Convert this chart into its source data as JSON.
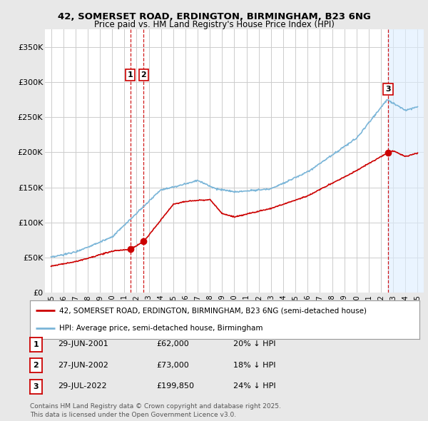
{
  "title_line1": "42, SOMERSET ROAD, ERDINGTON, BIRMINGHAM, B23 6NG",
  "title_line2": "Price paid vs. HM Land Registry's House Price Index (HPI)",
  "background_color": "#e8e8e8",
  "plot_bg_color": "#ffffff",
  "grid_color": "#cccccc",
  "hpi_color": "#7ab5d8",
  "price_color": "#cc0000",
  "dashed_color": "#cc0000",
  "shade_color": "#ddeeff",
  "purchases": [
    {
      "date_x": 2001.49,
      "price": 62000,
      "label": "1"
    },
    {
      "date_x": 2002.58,
      "price": 73000,
      "label": "2"
    },
    {
      "date_x": 2022.58,
      "price": 199850,
      "label": "3"
    }
  ],
  "legend_line1": "42, SOMERSET ROAD, ERDINGTON, BIRMINGHAM, B23 6NG (semi-detached house)",
  "legend_line2": "HPI: Average price, semi-detached house, Birmingham",
  "table_entries": [
    {
      "num": "1",
      "date": "29-JUN-2001",
      "price": "£62,000",
      "note": "20% ↓ HPI"
    },
    {
      "num": "2",
      "date": "27-JUN-2002",
      "price": "£73,000",
      "note": "18% ↓ HPI"
    },
    {
      "num": "3",
      "date": "29-JUL-2022",
      "price": "£199,850",
      "note": "24% ↓ HPI"
    }
  ],
  "footer": "Contains HM Land Registry data © Crown copyright and database right 2025.\nThis data is licensed under the Open Government Licence v3.0.",
  "ylim": [
    0,
    375000
  ],
  "xlim": [
    1994.5,
    2025.5
  ],
  "yticks": [
    0,
    50000,
    100000,
    150000,
    200000,
    250000,
    300000,
    350000
  ],
  "ytick_labels": [
    "£0",
    "£50K",
    "£100K",
    "£150K",
    "£200K",
    "£250K",
    "£300K",
    "£350K"
  ],
  "xticks": [
    1995,
    1996,
    1997,
    1998,
    1999,
    2000,
    2001,
    2002,
    2003,
    2004,
    2005,
    2006,
    2007,
    2008,
    2009,
    2010,
    2011,
    2012,
    2013,
    2014,
    2015,
    2016,
    2017,
    2018,
    2019,
    2020,
    2021,
    2022,
    2023,
    2024,
    2025
  ],
  "shade_start": 2022.58,
  "shade_end": 2025.5
}
